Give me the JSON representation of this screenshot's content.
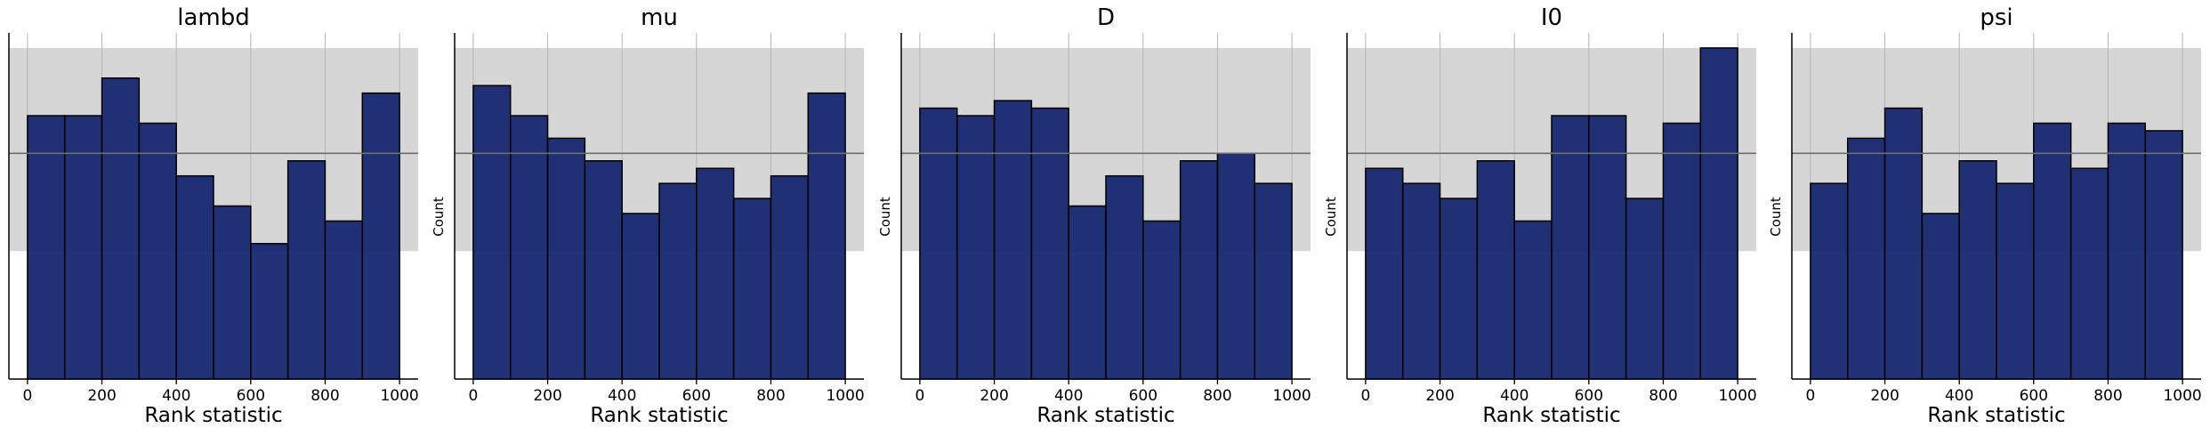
{
  "chart_data": [
    {
      "type": "bar",
      "title": "lambd",
      "xlabel": "Rank statistic",
      "ylabel": "",
      "xlim": [
        -50,
        1050
      ],
      "ylim": [
        0,
        46
      ],
      "xticks": [
        0,
        200,
        400,
        600,
        800,
        1000
      ],
      "bin_edges": [
        0,
        100,
        200,
        300,
        400,
        500,
        600,
        700,
        800,
        900,
        1000
      ],
      "values": [
        35,
        35,
        40,
        34,
        27,
        23,
        18,
        29,
        21,
        38
      ],
      "band": [
        17,
        44
      ],
      "expected": 30
    },
    {
      "type": "bar",
      "title": "mu",
      "xlabel": "Rank statistic",
      "ylabel": "Count",
      "xlim": [
        -50,
        1050
      ],
      "ylim": [
        0,
        46
      ],
      "xticks": [
        0,
        200,
        400,
        600,
        800,
        1000
      ],
      "bin_edges": [
        0,
        100,
        200,
        300,
        400,
        500,
        600,
        700,
        800,
        900,
        1000
      ],
      "values": [
        39,
        35,
        32,
        29,
        22,
        26,
        28,
        24,
        27,
        38
      ],
      "band": [
        17,
        44
      ],
      "expected": 30
    },
    {
      "type": "bar",
      "title": "D",
      "xlabel": "Rank statistic",
      "ylabel": "Count",
      "xlim": [
        -50,
        1050
      ],
      "ylim": [
        0,
        46
      ],
      "xticks": [
        0,
        200,
        400,
        600,
        800,
        1000
      ],
      "bin_edges": [
        0,
        100,
        200,
        300,
        400,
        500,
        600,
        700,
        800,
        900,
        1000
      ],
      "values": [
        36,
        35,
        37,
        36,
        23,
        27,
        21,
        29,
        30,
        26
      ],
      "band": [
        17,
        44
      ],
      "expected": 30
    },
    {
      "type": "bar",
      "title": "I0",
      "xlabel": "Rank statistic",
      "ylabel": "Count",
      "xlim": [
        -50,
        1050
      ],
      "ylim": [
        0,
        46
      ],
      "xticks": [
        0,
        200,
        400,
        600,
        800,
        1000
      ],
      "bin_edges": [
        0,
        100,
        200,
        300,
        400,
        500,
        600,
        700,
        800,
        900,
        1000
      ],
      "values": [
        28,
        26,
        24,
        29,
        21,
        35,
        35,
        24,
        34,
        44
      ],
      "band": [
        17,
        44
      ],
      "expected": 30
    },
    {
      "type": "bar",
      "title": "psi",
      "xlabel": "Rank statistic",
      "ylabel": "Count",
      "xlim": [
        -50,
        1050
      ],
      "ylim": [
        0,
        46
      ],
      "xticks": [
        0,
        200,
        400,
        600,
        800,
        1000
      ],
      "bin_edges": [
        0,
        100,
        200,
        300,
        400,
        500,
        600,
        700,
        800,
        900,
        1000
      ],
      "values": [
        26,
        32,
        36,
        22,
        29,
        26,
        34,
        28,
        34,
        33
      ],
      "band": [
        17,
        44
      ],
      "expected": 30
    }
  ],
  "colors": {
    "bar_fill": "#13256e",
    "bar_edge": "#000000",
    "band": "#d6d6d6",
    "expected_line": "#6e6e6e",
    "grid": "#b5b5b5",
    "axis": "#000000"
  },
  "style": {
    "grid": "vertical",
    "spines": "left-bottom"
  }
}
